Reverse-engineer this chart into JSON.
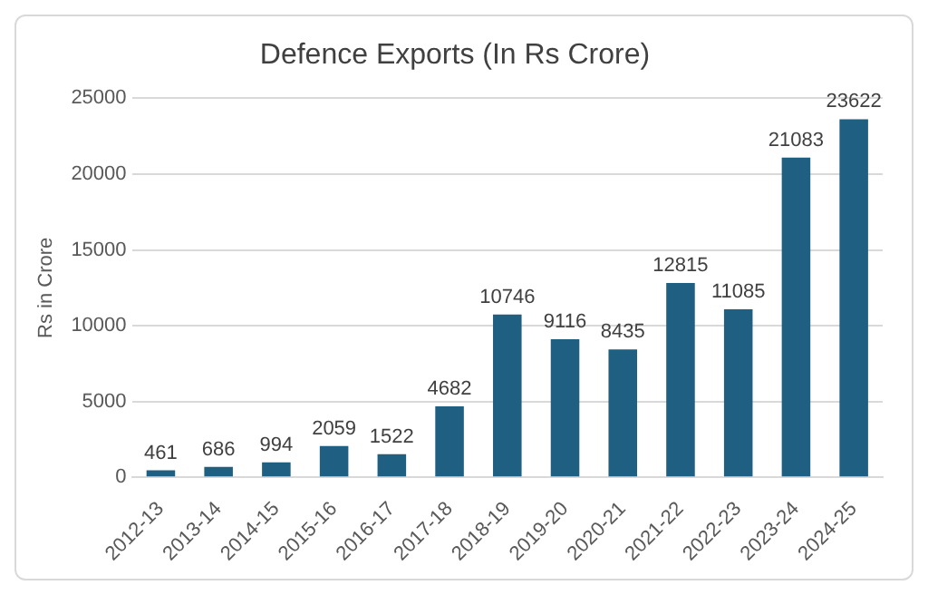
{
  "chart_data": {
    "type": "bar",
    "title": "Defence Exports (In Rs Crore)",
    "ylabel": "Rs in Crore",
    "categories": [
      "2012-13",
      "2013-14",
      "2014-15",
      "2015-16",
      "2016-17",
      "2017-18",
      "2018-19",
      "2019-20",
      "2020-21",
      "2021-22",
      "2022-23",
      "2023-24",
      "2024-25"
    ],
    "values": [
      461,
      686,
      994,
      2059,
      1522,
      4682,
      10746,
      9116,
      8435,
      12815,
      11085,
      21083,
      23622
    ],
    "color": "#1f5f82",
    "ylim": [
      0,
      25000
    ],
    "yticks": [
      0,
      5000,
      10000,
      15000,
      20000,
      25000
    ],
    "grid": "y",
    "data_labels": true
  }
}
